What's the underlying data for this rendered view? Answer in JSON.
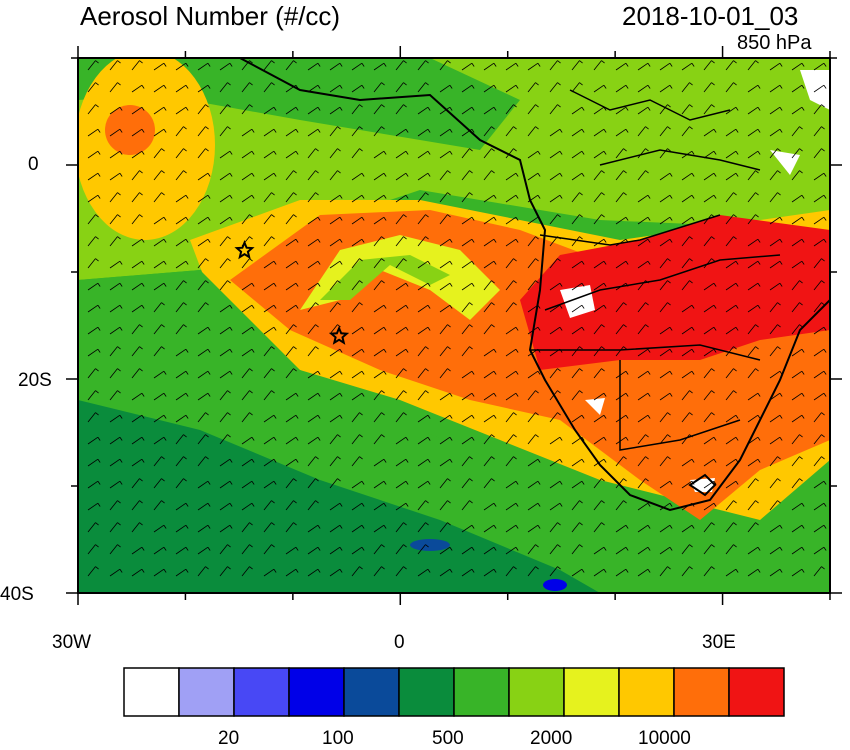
{
  "header": {
    "title": "Aerosol Number (#/cc)",
    "datetime": "2018-10-01_03",
    "level": "850 hPa"
  },
  "axes": {
    "lat_labels": [
      "0",
      "20S",
      "40S"
    ],
    "lon_labels": [
      "30W",
      "0",
      "30E"
    ]
  },
  "colorbar": {
    "labels": [
      "20",
      "100",
      "500",
      "2000",
      "10000"
    ],
    "colors": [
      "#ffffff",
      "#a0a0f5",
      "#4848f5",
      "#0000e8",
      "#0a4a9a",
      "#0a8c3c",
      "#38b428",
      "#88d214",
      "#e6f21e",
      "#ffc800",
      "#ff6e0a",
      "#f01414"
    ]
  },
  "markers": [
    {
      "name": "star-marker-1",
      "lon": -14.5,
      "lat": -8
    },
    {
      "name": "star-marker-2",
      "lon": -5.7,
      "lat": -16
    }
  ]
}
